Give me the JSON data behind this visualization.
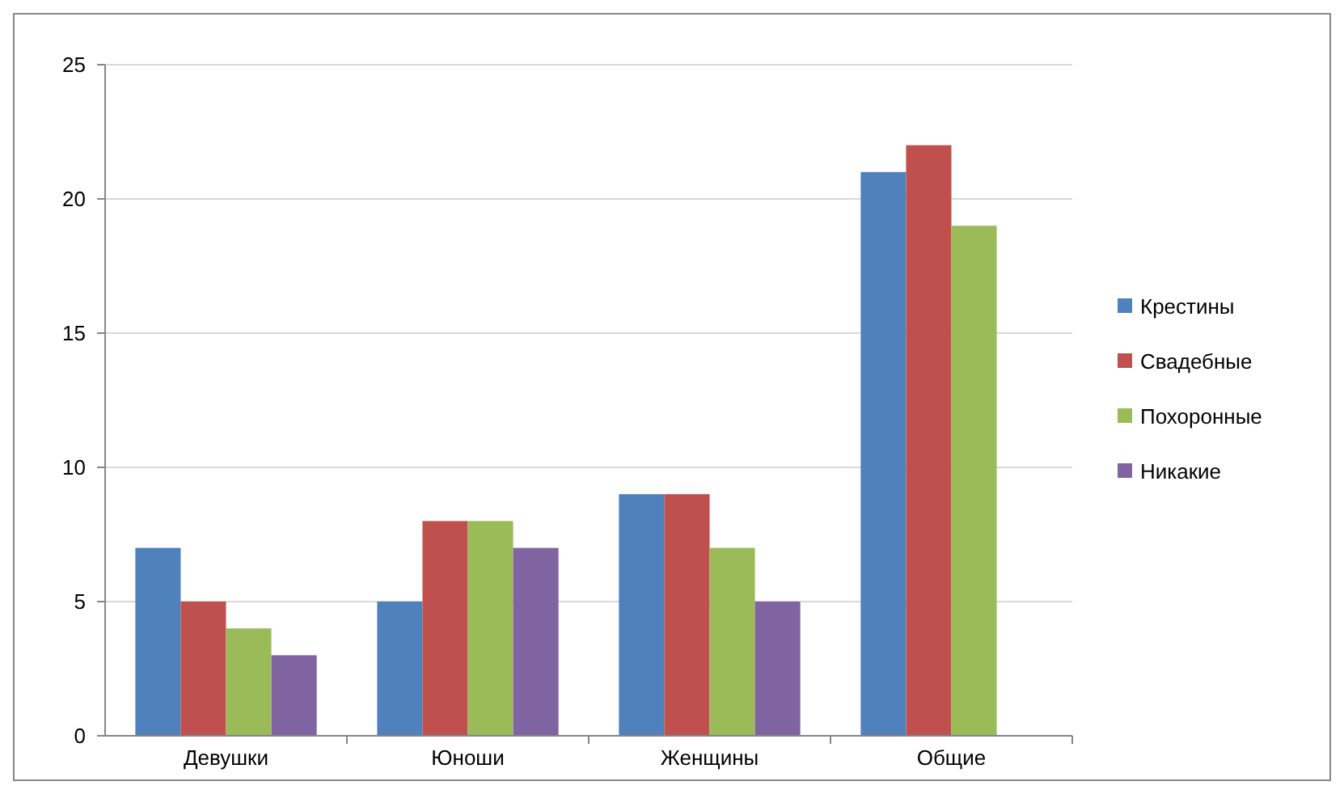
{
  "chart_data": {
    "type": "bar",
    "categories": [
      "Девушки",
      "Юноши",
      "Женщины",
      "Общие"
    ],
    "series": [
      {
        "name": "Крестины",
        "color": "#4f81bd",
        "values": [
          7,
          5,
          9,
          21
        ]
      },
      {
        "name": "Свадебные",
        "color": "#c0504d",
        "values": [
          5,
          8,
          9,
          22
        ]
      },
      {
        "name": "Похоронные",
        "color": "#9bbb59",
        "values": [
          4,
          8,
          7,
          19
        ]
      },
      {
        "name": "Никакие",
        "color": "#8064a2",
        "values": [
          3,
          7,
          5,
          null
        ]
      }
    ],
    "ylim": [
      0,
      25
    ],
    "yticks": [
      0,
      5,
      10,
      15,
      20,
      25
    ],
    "grid": "y",
    "legend": "right"
  }
}
